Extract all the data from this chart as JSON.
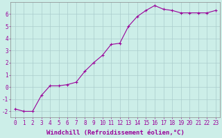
{
  "x": [
    0,
    1,
    2,
    3,
    4,
    5,
    6,
    7,
    8,
    9,
    10,
    11,
    12,
    13,
    14,
    15,
    16,
    17,
    18,
    19,
    20,
    21,
    22,
    23
  ],
  "y": [
    -1.8,
    -2.0,
    -2.0,
    -0.7,
    0.1,
    0.1,
    0.2,
    0.4,
    1.3,
    2.0,
    2.6,
    3.5,
    3.6,
    5.0,
    5.8,
    6.3,
    6.7,
    6.4,
    6.3,
    6.1,
    6.1,
    6.1,
    6.1,
    6.3
  ],
  "line_color": "#990099",
  "marker": "+",
  "marker_size": 3,
  "background_color": "#cceee8",
  "grid_color": "#aacccc",
  "xlabel": "Windchill (Refroidissement éolien,°C)",
  "xlabel_color": "#990099",
  "tick_color": "#990099",
  "ylim": [
    -2.5,
    7.0
  ],
  "xlim": [
    -0.5,
    23.5
  ],
  "yticks": [
    -2,
    -1,
    0,
    1,
    2,
    3,
    4,
    5,
    6
  ],
  "xticks": [
    0,
    1,
    2,
    3,
    4,
    5,
    6,
    7,
    8,
    9,
    10,
    11,
    12,
    13,
    14,
    15,
    16,
    17,
    18,
    19,
    20,
    21,
    22,
    23
  ],
  "spine_color": "#888888",
  "font_size_ticks": 5.5,
  "font_size_xlabel": 6.5,
  "linewidth": 0.8,
  "markeredgewidth": 0.8
}
